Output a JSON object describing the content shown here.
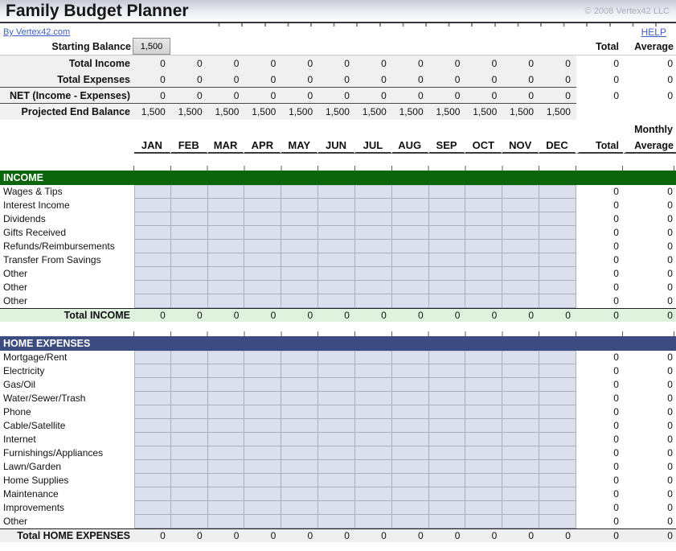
{
  "header": {
    "title": "Family Budget Planner",
    "copyright": "© 2008 Vertex42 LLC",
    "byline_link": "By Vertex42.com",
    "help_link": "HELP"
  },
  "colors": {
    "link": "#3a5fc8",
    "income_header": "#0b660b",
    "expenses_header": "#3c4b80",
    "income_total_bg": "#def2de",
    "expenses_total_bg": "#efefef",
    "entry_cell_bg": "#dce0ee"
  },
  "columns": {
    "months": [
      "JAN",
      "FEB",
      "MAR",
      "APR",
      "MAY",
      "JUN",
      "JUL",
      "AUG",
      "SEP",
      "OCT",
      "NOV",
      "DEC"
    ],
    "total": "Total",
    "monthly": "Monthly",
    "average": "Average"
  },
  "summary": {
    "starting_balance_label": "Starting Balance",
    "starting_balance_value": "1,500",
    "total_label": "Total",
    "average_label": "Average",
    "rows": [
      {
        "label": "Total Income",
        "values": [
          "0",
          "0",
          "0",
          "0",
          "0",
          "0",
          "0",
          "0",
          "0",
          "0",
          "0",
          "0"
        ],
        "total": "0",
        "average": "0"
      },
      {
        "label": "Total Expenses",
        "values": [
          "0",
          "0",
          "0",
          "0",
          "0",
          "0",
          "0",
          "0",
          "0",
          "0",
          "0",
          "0"
        ],
        "total": "0",
        "average": "0"
      },
      {
        "label": "NET (Income - Expenses)",
        "values": [
          "0",
          "0",
          "0",
          "0",
          "0",
          "0",
          "0",
          "0",
          "0",
          "0",
          "0",
          "0"
        ],
        "total": "0",
        "average": "0"
      },
      {
        "label": "Projected End Balance",
        "values": [
          "1,500",
          "1,500",
          "1,500",
          "1,500",
          "1,500",
          "1,500",
          "1,500",
          "1,500",
          "1,500",
          "1,500",
          "1,500",
          "1,500"
        ],
        "total": "",
        "average": ""
      }
    ]
  },
  "sections": [
    {
      "id": "income",
      "title": "INCOME",
      "header_color": "#0b660b",
      "total_row_color": "#def2de",
      "rows": [
        {
          "label": "Wages & Tips",
          "total": "0",
          "average": "0"
        },
        {
          "label": "Interest Income",
          "total": "0",
          "average": "0"
        },
        {
          "label": "Dividends",
          "total": "0",
          "average": "0"
        },
        {
          "label": "Gifts Received",
          "total": "0",
          "average": "0"
        },
        {
          "label": "Refunds/Reimbursements",
          "total": "0",
          "average": "0"
        },
        {
          "label": "Transfer From Savings",
          "total": "0",
          "average": "0"
        },
        {
          "label": "Other",
          "total": "0",
          "average": "0"
        },
        {
          "label": "Other",
          "total": "0",
          "average": "0"
        },
        {
          "label": "Other",
          "total": "0",
          "average": "0"
        }
      ],
      "total_row": {
        "label": "Total INCOME",
        "values": [
          "0",
          "0",
          "0",
          "0",
          "0",
          "0",
          "0",
          "0",
          "0",
          "0",
          "0",
          "0"
        ],
        "total": "0",
        "average": "0"
      }
    },
    {
      "id": "home-expenses",
      "title": "HOME EXPENSES",
      "header_color": "#3c4b80",
      "total_row_color": "#efefef",
      "rows": [
        {
          "label": "Mortgage/Rent",
          "total": "0",
          "average": "0"
        },
        {
          "label": "Electricity",
          "total": "0",
          "average": "0"
        },
        {
          "label": "Gas/Oil",
          "total": "0",
          "average": "0"
        },
        {
          "label": "Water/Sewer/Trash",
          "total": "0",
          "average": "0"
        },
        {
          "label": "Phone",
          "total": "0",
          "average": "0"
        },
        {
          "label": "Cable/Satellite",
          "total": "0",
          "average": "0"
        },
        {
          "label": "Internet",
          "total": "0",
          "average": "0"
        },
        {
          "label": "Furnishings/Appliances",
          "total": "0",
          "average": "0"
        },
        {
          "label": "Lawn/Garden",
          "total": "0",
          "average": "0"
        },
        {
          "label": "Home Supplies",
          "total": "0",
          "average": "0"
        },
        {
          "label": "Maintenance",
          "total": "0",
          "average": "0"
        },
        {
          "label": "Improvements",
          "total": "0",
          "average": "0"
        },
        {
          "label": "Other",
          "total": "0",
          "average": "0"
        }
      ],
      "total_row": {
        "label": "Total HOME EXPENSES",
        "values": [
          "0",
          "0",
          "0",
          "0",
          "0",
          "0",
          "0",
          "0",
          "0",
          "0",
          "0",
          "0"
        ],
        "total": "0",
        "average": "0"
      }
    }
  ]
}
